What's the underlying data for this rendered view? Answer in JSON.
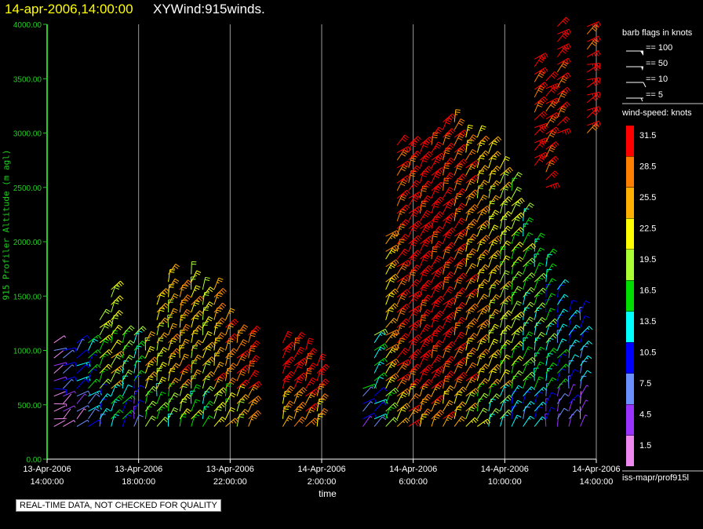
{
  "title": {
    "date": "14-apr-2006,14:00:00",
    "name": "XYWind:915winds."
  },
  "qc_note": "REAL-TIME DATA, NOT CHECKED FOR QUALITY",
  "source_label": "iss-mapr/prof915l",
  "chart_data": {
    "type": "scatter",
    "title": "XYWind:915winds.",
    "xlabel": "time",
    "ylabel": "915 Profiler Altitude (m agl)",
    "ylim": [
      0,
      4000
    ],
    "y_ticks": [
      "0.00",
      "500.00",
      "1000.00",
      "1500.00",
      "2000.00",
      "2500.00",
      "3000.00",
      "3500.00",
      "4000.00"
    ],
    "x_ticks": [
      {
        "date": "13-Apr-2006",
        "time": "14:00:00",
        "hours": 0
      },
      {
        "date": "13-Apr-2006",
        "time": "18:00:00",
        "hours": 4
      },
      {
        "date": "13-Apr-2006",
        "time": "22:00:00",
        "hours": 8
      },
      {
        "date": "14-Apr-2006",
        "time": "2:00:00",
        "hours": 12
      },
      {
        "date": "14-Apr-2006",
        "time": "6:00:00",
        "hours": 16
      },
      {
        "date": "14-Apr-2006",
        "time": "10:00:00",
        "hours": 20
      },
      {
        "date": "14-Apr-2006",
        "time": "14:00:00",
        "hours": 24
      }
    ],
    "vertical_grid": true,
    "barb_legend": {
      "title": "barb flags in knots",
      "entries": [
        "== 100",
        "== 50",
        "== 10",
        "== 5"
      ]
    },
    "speed_legend": {
      "title": "wind-speed: knots",
      "levels": [
        {
          "label": "31.5",
          "color": "#ff0000"
        },
        {
          "label": "28.5",
          "color": "#ff8000"
        },
        {
          "label": "25.5",
          "color": "#ffb000"
        },
        {
          "label": "22.5",
          "color": "#ffff00"
        },
        {
          "label": "19.5",
          "color": "#aaff33"
        },
        {
          "label": "16.5",
          "color": "#00dd00"
        },
        {
          "label": "13.5",
          "color": "#00ffff"
        },
        {
          "label": "10.5",
          "color": "#0000ff"
        },
        {
          "label": "7.5",
          "color": "#6a8fff"
        },
        {
          "label": "4.5",
          "color": "#9933ff"
        },
        {
          "label": "1.5",
          "color": "#ee88ee"
        }
      ]
    },
    "series": [
      {
        "profiles": [
          {
            "hour": 0.3,
            "bottom": 300,
            "top": 1100,
            "speed": 5,
            "dir": 250
          },
          {
            "hour": 0.7,
            "bottom": 300,
            "top": 1000,
            "speed": 9,
            "dir": 240
          },
          {
            "hour": 1.3,
            "bottom": 300,
            "top": 1100,
            "speed": 11,
            "dir": 230
          },
          {
            "hour": 1.8,
            "bottom": 300,
            "top": 1100,
            "speed": 15,
            "dir": 220
          },
          {
            "hour": 2.3,
            "bottom": 300,
            "top": 1300,
            "speed": 19,
            "dir": 210
          },
          {
            "hour": 2.8,
            "bottom": 300,
            "top": 1600,
            "speed": 21,
            "dir": 210
          },
          {
            "hour": 3.3,
            "bottom": 300,
            "top": 1200,
            "speed": 18,
            "dir": 205
          },
          {
            "hour": 3.8,
            "bottom": 300,
            "top": 1200,
            "speed": 14,
            "dir": 200
          },
          {
            "hour": 4.3,
            "bottom": 300,
            "top": 1100,
            "speed": 23,
            "dir": 200
          },
          {
            "hour": 4.8,
            "bottom": 300,
            "top": 1500,
            "speed": 22,
            "dir": 200
          },
          {
            "hour": 5.3,
            "bottom": 300,
            "top": 1700,
            "speed": 24,
            "dir": 200
          },
          {
            "hour": 5.8,
            "bottom": 300,
            "top": 1600,
            "speed": 26,
            "dir": 200
          },
          {
            "hour": 6.3,
            "bottom": 300,
            "top": 1700,
            "speed": 23,
            "dir": 200
          },
          {
            "hour": 6.8,
            "bottom": 300,
            "top": 1600,
            "speed": 22,
            "dir": 205
          },
          {
            "hour": 7.3,
            "bottom": 300,
            "top": 1600,
            "speed": 26,
            "dir": 205
          },
          {
            "hour": 7.8,
            "bottom": 300,
            "top": 1300,
            "speed": 27,
            "dir": 205
          },
          {
            "hour": 8.3,
            "bottom": 300,
            "top": 1200,
            "speed": 29,
            "dir": 210
          },
          {
            "hour": 8.8,
            "bottom": 300,
            "top": 1200,
            "speed": 32,
            "dir": 210
          },
          {
            "hour": 10.3,
            "bottom": 300,
            "top": 1100,
            "speed": 33,
            "dir": 210
          },
          {
            "hour": 10.8,
            "bottom": 300,
            "top": 1100,
            "speed": 33,
            "dir": 210
          },
          {
            "hour": 11.3,
            "bottom": 300,
            "top": 1000,
            "speed": 33,
            "dir": 210
          },
          {
            "hour": 11.8,
            "bottom": 300,
            "top": 900,
            "speed": 33,
            "dir": 210
          },
          {
            "hour": 13.8,
            "bottom": 300,
            "top": 700,
            "speed": 14,
            "dir": 230
          },
          {
            "hour": 14.3,
            "bottom": 300,
            "top": 1200,
            "speed": 16,
            "dir": 225
          },
          {
            "hour": 14.8,
            "bottom": 300,
            "top": 2100,
            "speed": 25,
            "dir": 220
          },
          {
            "hour": 15.3,
            "bottom": 300,
            "top": 2900,
            "speed": 30,
            "dir": 215
          },
          {
            "hour": 15.8,
            "bottom": 300,
            "top": 2900,
            "speed": 33,
            "dir": 215
          },
          {
            "hour": 16.3,
            "bottom": 300,
            "top": 2900,
            "speed": 33,
            "dir": 210
          },
          {
            "hour": 16.8,
            "bottom": 300,
            "top": 3000,
            "speed": 33,
            "dir": 210
          },
          {
            "hour": 17.3,
            "bottom": 300,
            "top": 3100,
            "speed": 32,
            "dir": 210
          },
          {
            "hour": 17.8,
            "bottom": 300,
            "top": 3100,
            "speed": 30,
            "dir": 210
          },
          {
            "hour": 18.3,
            "bottom": 300,
            "top": 3000,
            "speed": 27,
            "dir": 210
          },
          {
            "hour": 18.8,
            "bottom": 300,
            "top": 3000,
            "speed": 25,
            "dir": 210
          },
          {
            "hour": 19.3,
            "bottom": 300,
            "top": 2900,
            "speed": 23,
            "dir": 205
          },
          {
            "hour": 19.8,
            "bottom": 300,
            "top": 2700,
            "speed": 21,
            "dir": 205
          },
          {
            "hour": 20.3,
            "bottom": 300,
            "top": 2600,
            "speed": 19,
            "dir": 205
          },
          {
            "hour": 20.8,
            "bottom": 300,
            "top": 2300,
            "speed": 17,
            "dir": 205
          },
          {
            "hour": 21.3,
            "bottom": 300,
            "top": 2000,
            "speed": 16,
            "dir": 200
          },
          {
            "hour": 21.8,
            "bottom": 300,
            "top": 1900,
            "speed": 15,
            "dir": 200
          },
          {
            "hour": 22.3,
            "bottom": 300,
            "top": 1600,
            "speed": 12,
            "dir": 200
          },
          {
            "hour": 22.8,
            "bottom": 300,
            "top": 1400,
            "speed": 11,
            "dir": 200
          },
          {
            "hour": 23.3,
            "bottom": 300,
            "top": 1400,
            "speed": 10,
            "dir": 200
          }
        ]
      },
      {
        "profiles": [
          {
            "hour": 21.3,
            "bottom": 2700,
            "top": 3700,
            "speed": 32,
            "dir": 225
          },
          {
            "hour": 21.8,
            "bottom": 2500,
            "top": 3500,
            "speed": 31,
            "dir": 225
          },
          {
            "hour": 22.3,
            "bottom": 3000,
            "top": 4000,
            "speed": 32,
            "dir": 225
          },
          {
            "hour": 23.6,
            "bottom": 3000,
            "top": 4000,
            "speed": 33,
            "dir": 240
          }
        ]
      }
    ]
  }
}
